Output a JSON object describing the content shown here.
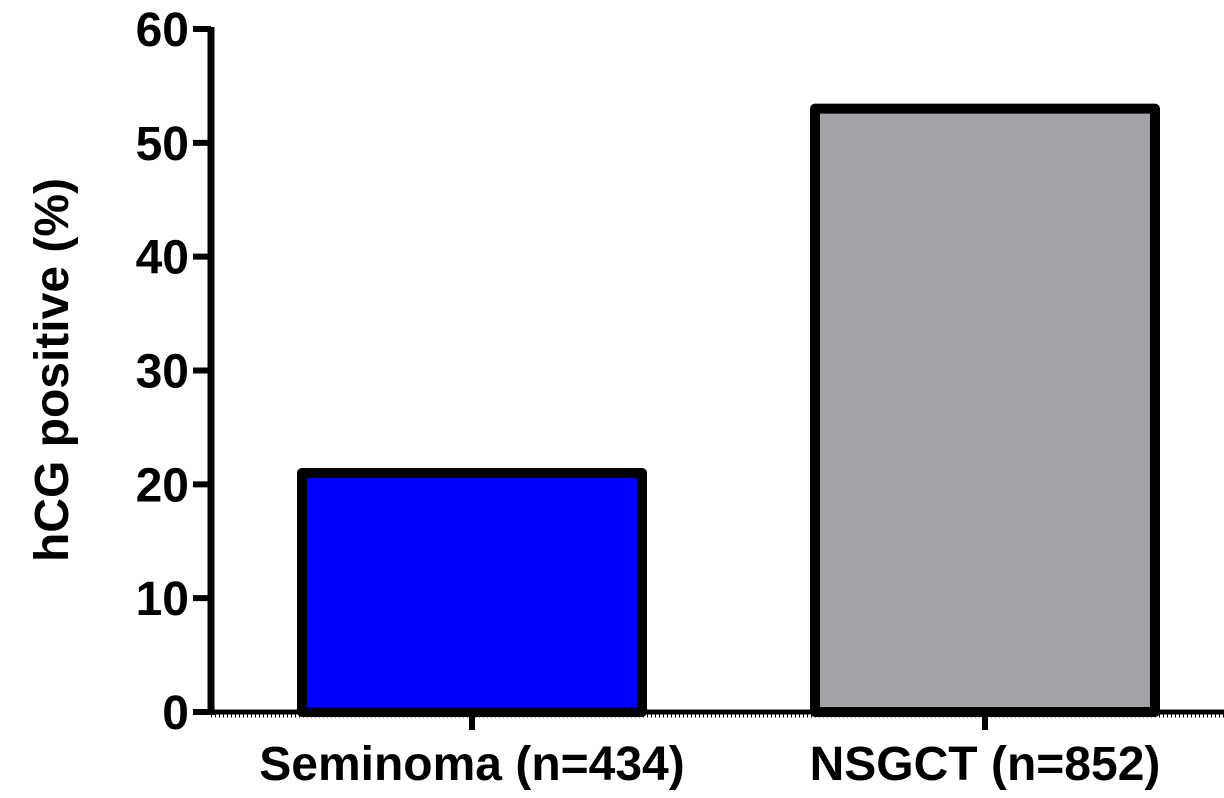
{
  "chart_data": {
    "type": "bar",
    "title": "",
    "xlabel": "",
    "ylabel": "hCG positive (%)",
    "categories": [
      "Seminoma (n=434)",
      "NSGCT (n=852)"
    ],
    "values": [
      21,
      53
    ],
    "colors": [
      "#0000FF",
      "#A3A2A7"
    ],
    "ylim": [
      0,
      60
    ],
    "yticks": [
      0,
      10,
      20,
      30,
      40,
      50,
      60
    ],
    "ytick_labels": [
      "0",
      "10",
      "20",
      "30",
      "40",
      "50",
      "60"
    ],
    "grid": false,
    "legend": "none"
  }
}
